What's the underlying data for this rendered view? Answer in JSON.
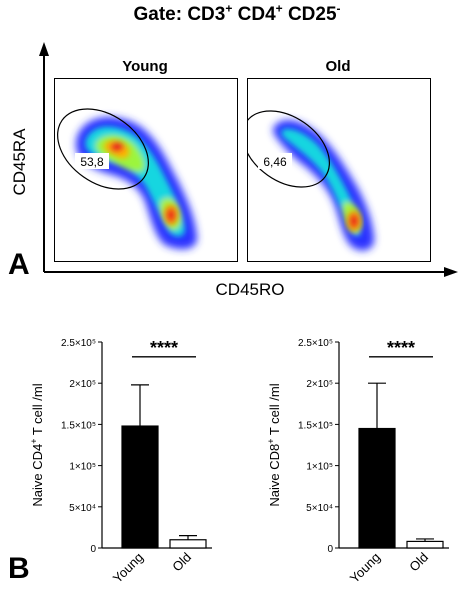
{
  "title": {
    "prefix": "Gate:",
    "m1": "CD3",
    "s1": "+",
    "m2": "CD4",
    "s2": "+",
    "m3": "CD25",
    "s3": "-"
  },
  "panel_a": {
    "letter": "A",
    "y_axis_label": "CD45RA",
    "x_axis_label": "CD45RO",
    "plots": [
      {
        "label": "Young",
        "gate_value": "53,8"
      },
      {
        "label": "Old",
        "gate_value": "6,46"
      }
    ]
  },
  "panel_b": {
    "letter": "B"
  },
  "chart_data": [
    {
      "type": "bar",
      "categories": [
        "Young",
        "Old"
      ],
      "values": [
        148000,
        10000
      ],
      "error_upper": [
        198000,
        15000
      ],
      "ylabel": "Naive CD4+ T cell /ml",
      "ylabel_main": "Naive CD4",
      "ylabel_sup": "+",
      "ylabel_rest": " T cell /ml",
      "ylim": [
        0,
        250000
      ],
      "yticks": [
        0,
        50000,
        100000,
        150000,
        200000,
        250000
      ],
      "ytick_labels": [
        "0",
        "5×10⁴",
        "1×10⁵",
        "1.5×10⁵",
        "2×10⁵",
        "2.5×10⁵"
      ],
      "bar_colors": [
        "#000000",
        "#ffffff"
      ],
      "significance": "****"
    },
    {
      "type": "bar",
      "categories": [
        "Young",
        "Old"
      ],
      "values": [
        145000,
        8000
      ],
      "error_upper": [
        200000,
        11000
      ],
      "ylabel": "Naive CD8+ T cell /ml",
      "ylabel_main": "Naive CD8",
      "ylabel_sup": "+",
      "ylabel_rest": " T cell /ml",
      "ylim": [
        0,
        250000
      ],
      "yticks": [
        0,
        50000,
        100000,
        150000,
        200000,
        250000
      ],
      "ytick_labels": [
        "0",
        "5×10⁴",
        "1×10⁵",
        "1.5×10⁵",
        "2×10⁵",
        "2.5×10⁵"
      ],
      "bar_colors": [
        "#000000",
        "#ffffff"
      ],
      "significance": "****"
    }
  ]
}
